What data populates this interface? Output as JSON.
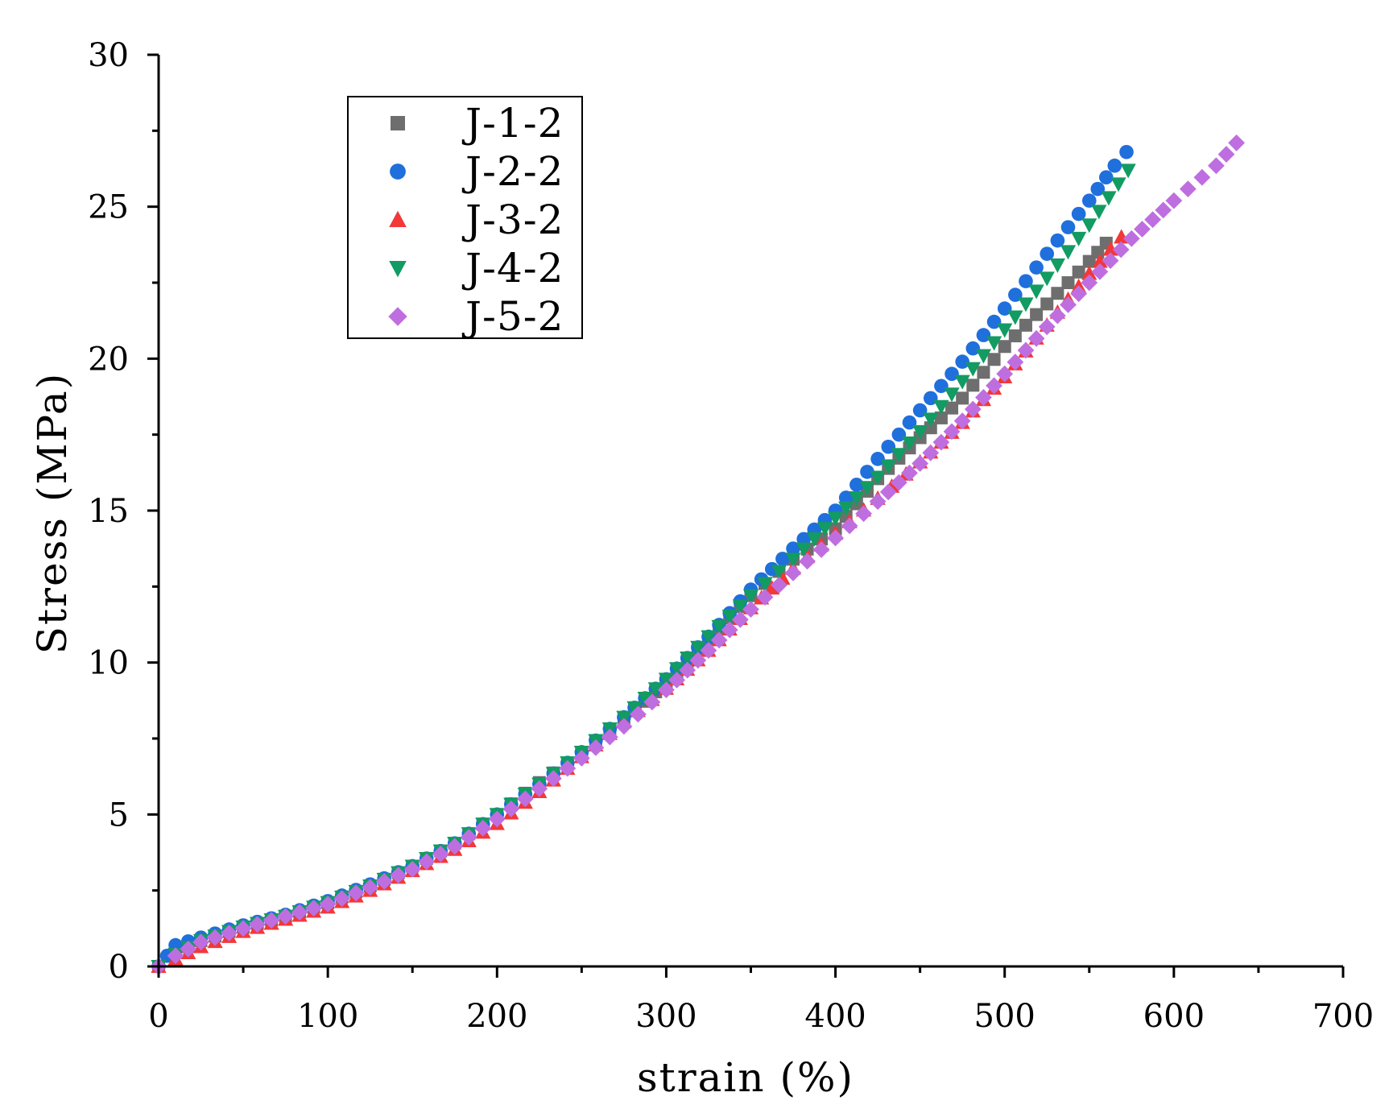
{
  "chart_data": {
    "type": "scatter",
    "title": "",
    "xlabel": "strain (%)",
    "ylabel": "Stress (MPa)",
    "xlim": [
      0,
      700
    ],
    "ylim": [
      0,
      30
    ],
    "x_ticks": [
      "0",
      "100",
      "200",
      "300",
      "400",
      "500",
      "600",
      "700"
    ],
    "y_ticks": [
      "0",
      "5",
      "10",
      "15",
      "20",
      "25",
      "30"
    ],
    "grid": false,
    "legend_position": "top-left",
    "series": [
      {
        "name": "J-1-2",
        "marker": "square",
        "color": "#6e6e6e",
        "points": [
          [
            0,
            0
          ],
          [
            10,
            0.45
          ],
          [
            25,
            0.85
          ],
          [
            50,
            1.3
          ],
          [
            75,
            1.65
          ],
          [
            100,
            2.1
          ],
          [
            125,
            2.65
          ],
          [
            150,
            3.3
          ],
          [
            175,
            4.05
          ],
          [
            200,
            5.0
          ],
          [
            225,
            6.05
          ],
          [
            250,
            7.0
          ],
          [
            275,
            8.1
          ],
          [
            300,
            9.35
          ],
          [
            325,
            10.75
          ],
          [
            350,
            12.2
          ],
          [
            375,
            13.4
          ],
          [
            400,
            14.4
          ],
          [
            425,
            16.05
          ],
          [
            450,
            17.4
          ],
          [
            475,
            18.7
          ],
          [
            500,
            20.4
          ],
          [
            525,
            21.8
          ],
          [
            550,
            23.2
          ],
          [
            560,
            23.8
          ]
        ]
      },
      {
        "name": "J-2-2",
        "marker": "circle",
        "color": "#1f6fdc",
        "points": [
          [
            0,
            0
          ],
          [
            10,
            0.7
          ],
          [
            25,
            0.95
          ],
          [
            50,
            1.35
          ],
          [
            75,
            1.7
          ],
          [
            100,
            2.15
          ],
          [
            125,
            2.7
          ],
          [
            150,
            3.3
          ],
          [
            175,
            4.05
          ],
          [
            200,
            5.0
          ],
          [
            225,
            6.0
          ],
          [
            250,
            7.05
          ],
          [
            275,
            8.2
          ],
          [
            300,
            9.45
          ],
          [
            325,
            10.85
          ],
          [
            350,
            12.4
          ],
          [
            375,
            13.75
          ],
          [
            400,
            15.0
          ],
          [
            425,
            16.7
          ],
          [
            450,
            18.3
          ],
          [
            475,
            19.9
          ],
          [
            500,
            21.65
          ],
          [
            525,
            23.45
          ],
          [
            550,
            25.2
          ],
          [
            565,
            26.35
          ],
          [
            572,
            26.8
          ]
        ]
      },
      {
        "name": "J-3-2",
        "marker": "triangle-up",
        "color": "#f23838",
        "points": [
          [
            0,
            0
          ],
          [
            10,
            0.25
          ],
          [
            25,
            0.65
          ],
          [
            50,
            1.15
          ],
          [
            75,
            1.55
          ],
          [
            100,
            1.95
          ],
          [
            125,
            2.5
          ],
          [
            150,
            3.15
          ],
          [
            175,
            3.85
          ],
          [
            200,
            4.7
          ],
          [
            225,
            5.75
          ],
          [
            250,
            6.9
          ],
          [
            275,
            8.05
          ],
          [
            300,
            9.15
          ],
          [
            325,
            10.4
          ],
          [
            350,
            11.8
          ],
          [
            375,
            13.1
          ],
          [
            400,
            14.25
          ],
          [
            425,
            15.4
          ],
          [
            450,
            16.6
          ],
          [
            475,
            17.9
          ],
          [
            500,
            19.4
          ],
          [
            525,
            21.1
          ],
          [
            550,
            22.8
          ],
          [
            569,
            24.0
          ]
        ]
      },
      {
        "name": "J-4-2",
        "marker": "triangle-down",
        "color": "#129b62",
        "points": [
          [
            0,
            0
          ],
          [
            10,
            0.4
          ],
          [
            25,
            0.85
          ],
          [
            50,
            1.3
          ],
          [
            75,
            1.65
          ],
          [
            100,
            2.1
          ],
          [
            125,
            2.65
          ],
          [
            150,
            3.3
          ],
          [
            175,
            4.05
          ],
          [
            200,
            5.0
          ],
          [
            225,
            6.0
          ],
          [
            250,
            7.05
          ],
          [
            275,
            8.2
          ],
          [
            300,
            9.45
          ],
          [
            325,
            10.85
          ],
          [
            350,
            12.2
          ],
          [
            375,
            13.4
          ],
          [
            400,
            14.75
          ],
          [
            425,
            16.1
          ],
          [
            450,
            17.6
          ],
          [
            475,
            19.25
          ],
          [
            500,
            20.95
          ],
          [
            525,
            22.65
          ],
          [
            550,
            24.4
          ],
          [
            573,
            26.2
          ]
        ]
      },
      {
        "name": "J-5-2",
        "marker": "diamond",
        "color": "#bf6ee0",
        "points": [
          [
            0,
            0
          ],
          [
            10,
            0.35
          ],
          [
            25,
            0.8
          ],
          [
            50,
            1.25
          ],
          [
            75,
            1.65
          ],
          [
            100,
            2.05
          ],
          [
            125,
            2.6
          ],
          [
            150,
            3.2
          ],
          [
            175,
            3.95
          ],
          [
            200,
            4.85
          ],
          [
            225,
            5.85
          ],
          [
            250,
            6.85
          ],
          [
            275,
            7.9
          ],
          [
            300,
            9.1
          ],
          [
            325,
            10.4
          ],
          [
            350,
            11.75
          ],
          [
            375,
            12.95
          ],
          [
            400,
            14.1
          ],
          [
            425,
            15.3
          ],
          [
            450,
            16.55
          ],
          [
            475,
            17.95
          ],
          [
            500,
            19.5
          ],
          [
            525,
            21.05
          ],
          [
            550,
            22.5
          ],
          [
            575,
            23.95
          ],
          [
            600,
            25.2
          ],
          [
            625,
            26.35
          ],
          [
            637,
            27.1
          ]
        ]
      }
    ]
  }
}
